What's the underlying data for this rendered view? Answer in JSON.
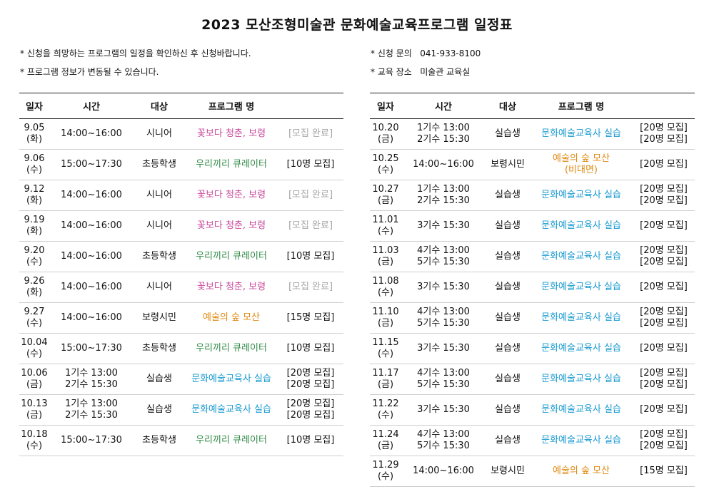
{
  "title": "2023 모산조형미술관 문화예술교육프로그램 일정표",
  "notes_left": [
    "* 신청을 희망하는 프로그램의 일정을 확인하신 후 신청바랍니다.",
    "* 프로그램 정보가 변동될 수 있습니다."
  ],
  "notes_right": [
    "* 신청 문의   041-933-8100",
    "* 교육 장소   미술관 교육실"
  ],
  "headers": {
    "date": "일자",
    "time": "시간",
    "target": "대상",
    "program": "프로그램 명",
    "status": ""
  },
  "colors": {
    "pink": "#c94b9c",
    "green": "#2f8a46",
    "orange": "#e08a12",
    "blue": "#1a9bd0",
    "gray": "#a8a8a8"
  },
  "left_rows": [
    {
      "date": [
        "9.05",
        "(화)"
      ],
      "time": [
        "14:00~16:00"
      ],
      "target": "시니어",
      "program": [
        "꽃보다 청춘, 보령"
      ],
      "color": "pink",
      "status": [
        "[모집 완료]"
      ],
      "status_color": "gray"
    },
    {
      "date": [
        "9.06",
        "(수)"
      ],
      "time": [
        "15:00~17:30"
      ],
      "target": "초등학생",
      "program": [
        "우리끼리 큐레이터"
      ],
      "color": "green",
      "status": [
        "[10명 모집]"
      ],
      "status_color": ""
    },
    {
      "date": [
        "9.12",
        "(화)"
      ],
      "time": [
        "14:00~16:00"
      ],
      "target": "시니어",
      "program": [
        "꽃보다 청춘, 보령"
      ],
      "color": "pink",
      "status": [
        "[모집 완료]"
      ],
      "status_color": "gray"
    },
    {
      "date": [
        "9.19",
        "(화)"
      ],
      "time": [
        "14:00~16:00"
      ],
      "target": "시니어",
      "program": [
        "꽃보다 청춘, 보령"
      ],
      "color": "pink",
      "status": [
        "[모집 완료]"
      ],
      "status_color": "gray"
    },
    {
      "date": [
        "9.20",
        "(수)"
      ],
      "time": [
        "14:00~16:00"
      ],
      "target": "초등학생",
      "program": [
        "우리끼리 큐레이터"
      ],
      "color": "green",
      "status": [
        "[10명 모집]"
      ],
      "status_color": ""
    },
    {
      "date": [
        "9.26",
        "(화)"
      ],
      "time": [
        "14:00~16:00"
      ],
      "target": "시니어",
      "program": [
        "꽃보다 청춘, 보령"
      ],
      "color": "pink",
      "status": [
        "[모집 완료]"
      ],
      "status_color": "gray"
    },
    {
      "date": [
        "9.27",
        "(수)"
      ],
      "time": [
        "14:00~16:00"
      ],
      "target": "보령시민",
      "program": [
        "예술의 숲 모산"
      ],
      "color": "orange",
      "status": [
        "[15명 모집]"
      ],
      "status_color": ""
    },
    {
      "date": [
        "10.04",
        "(수)"
      ],
      "time": [
        "15:00~17:30"
      ],
      "target": "초등학생",
      "program": [
        "우리끼리 큐레이터"
      ],
      "color": "green",
      "status": [
        "[10명 모집]"
      ],
      "status_color": ""
    },
    {
      "date": [
        "10.06",
        "(금)"
      ],
      "time": [
        "1기수 13:00",
        "2기수 15:30"
      ],
      "target": "실습생",
      "program": [
        "문화예술교육사 실습"
      ],
      "color": "blue",
      "status": [
        "[20명 모집]",
        "[20명 모집]"
      ],
      "status_color": ""
    },
    {
      "date": [
        "10.13",
        "(금)"
      ],
      "time": [
        "1기수 13:00",
        "2기수 15:30"
      ],
      "target": "실습생",
      "program": [
        "문화예술교육사 실습"
      ],
      "color": "blue",
      "status": [
        "[20명 모집]",
        "[20명 모집]"
      ],
      "status_color": ""
    },
    {
      "date": [
        "10.18",
        "(수)"
      ],
      "time": [
        "15:00~17:30"
      ],
      "target": "초등학생",
      "program": [
        "우리끼리 큐레이터"
      ],
      "color": "green",
      "status": [
        "[10명 모집]"
      ],
      "status_color": ""
    }
  ],
  "right_rows": [
    {
      "date": [
        "10.20",
        "(금)"
      ],
      "time": [
        "1기수 13:00",
        "2기수 15:30"
      ],
      "target": "실습생",
      "program": [
        "문화예술교육사 실습"
      ],
      "color": "blue",
      "status": [
        "[20명 모집]",
        "[20명 모집]"
      ],
      "status_color": ""
    },
    {
      "date": [
        "10.25",
        "(수)"
      ],
      "time": [
        "14:00~16:00"
      ],
      "target": "보령시민",
      "program": [
        "예술의 숲 모산",
        "(비대면)"
      ],
      "color": "orange",
      "status": [
        "[20명 모집]"
      ],
      "status_color": ""
    },
    {
      "date": [
        "10.27",
        "(금)"
      ],
      "time": [
        "1기수 13:00",
        "2기수 15:30"
      ],
      "target": "실습생",
      "program": [
        "문화예술교육사 실습"
      ],
      "color": "blue",
      "status": [
        "[20명 모집]",
        "[20명 모집]"
      ],
      "status_color": ""
    },
    {
      "date": [
        "11.01",
        "(수)"
      ],
      "time": [
        "3기수 15:30"
      ],
      "target": "실습생",
      "program": [
        "문화예술교육사 실습"
      ],
      "color": "blue",
      "status": [
        "[20명 모집]"
      ],
      "status_color": ""
    },
    {
      "date": [
        "11.03",
        "(금)"
      ],
      "time": [
        "4기수 13:00",
        "5기수 15:30"
      ],
      "target": "실습생",
      "program": [
        "문화예술교육사 실습"
      ],
      "color": "blue",
      "status": [
        "[20명 모집]",
        "[20명 모집]"
      ],
      "status_color": ""
    },
    {
      "date": [
        "11.08",
        "(수)"
      ],
      "time": [
        "3기수 15:30"
      ],
      "target": "실습생",
      "program": [
        "문화예술교육사 실습"
      ],
      "color": "blue",
      "status": [
        "[20명 모집]"
      ],
      "status_color": ""
    },
    {
      "date": [
        "11.10",
        "(금)"
      ],
      "time": [
        "4기수 13:00",
        "5기수 15:30"
      ],
      "target": "실습생",
      "program": [
        "문화예술교육사 실습"
      ],
      "color": "blue",
      "status": [
        "[20명 모집]",
        "[20명 모집]"
      ],
      "status_color": ""
    },
    {
      "date": [
        "11.15",
        "(수)"
      ],
      "time": [
        "3기수 15:30"
      ],
      "target": "실습생",
      "program": [
        "문화예술교육사 실습"
      ],
      "color": "blue",
      "status": [
        "[20명 모집]"
      ],
      "status_color": ""
    },
    {
      "date": [
        "11.17",
        "(금)"
      ],
      "time": [
        "4기수 13:00",
        "5기수 15:30"
      ],
      "target": "실습생",
      "program": [
        "문화예술교육사 실습"
      ],
      "color": "blue",
      "status": [
        "[20명 모집]",
        "[20명 모집]"
      ],
      "status_color": ""
    },
    {
      "date": [
        "11.22",
        "(수)"
      ],
      "time": [
        "3기수 15:30"
      ],
      "target": "실습생",
      "program": [
        "문화예술교육사 실습"
      ],
      "color": "blue",
      "status": [
        "[20명 모집]"
      ],
      "status_color": ""
    },
    {
      "date": [
        "11.24",
        "(금)"
      ],
      "time": [
        "4기수 13:00",
        "5기수 15:30"
      ],
      "target": "실습생",
      "program": [
        "문화예술교육사 실습"
      ],
      "color": "blue",
      "status": [
        "[20명 모집]",
        "[20명 모집]"
      ],
      "status_color": ""
    },
    {
      "date": [
        "11.29",
        "(수)"
      ],
      "time": [
        "14:00~16:00"
      ],
      "target": "보령시민",
      "program": [
        "예술의 숲 모산"
      ],
      "color": "orange",
      "status": [
        "[15명 모집]"
      ],
      "status_color": ""
    }
  ]
}
